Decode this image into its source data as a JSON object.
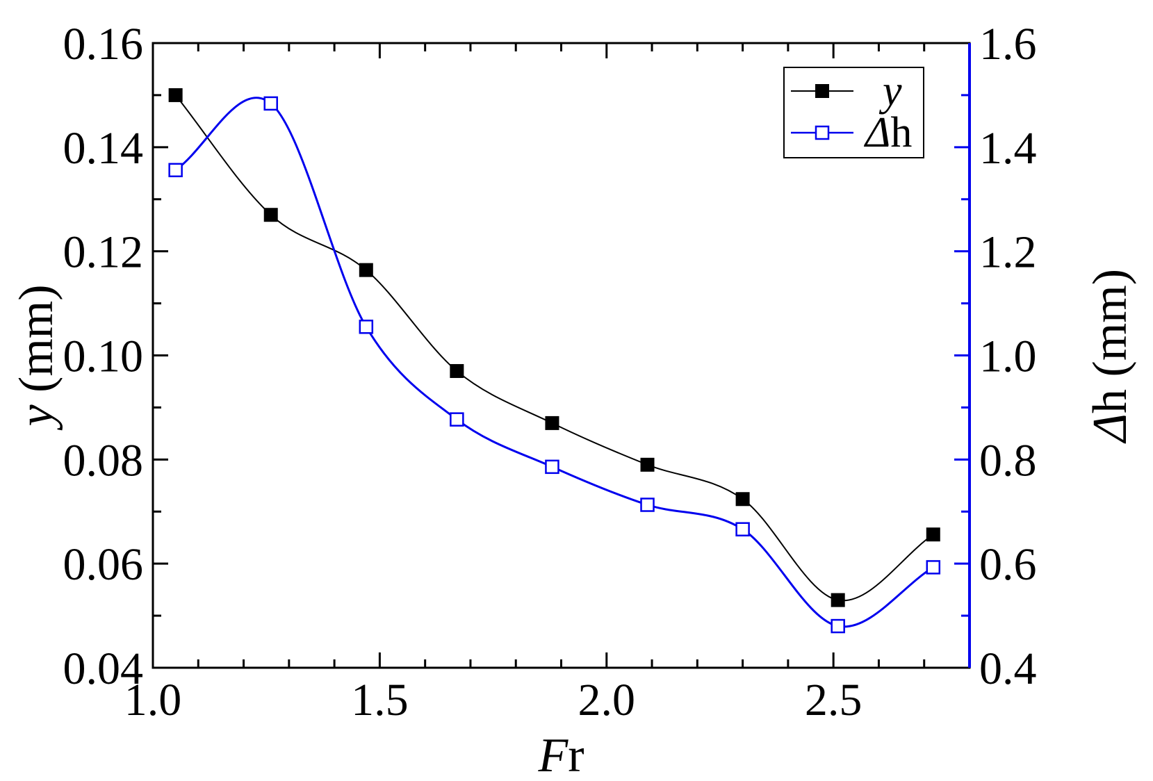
{
  "chart_data": {
    "type": "line",
    "xlabel": {
      "italic": "F",
      "normal": "r"
    },
    "ylabel": {
      "italic": "y",
      "normal": " (mm)"
    },
    "y2label": {
      "italic": "Δ",
      "normal": "h (mm)"
    },
    "xlim": [
      1.0,
      2.8
    ],
    "ylim": [
      0.04,
      0.16
    ],
    "y2lim": [
      0.4,
      1.6
    ],
    "x_ticks": [
      "1.0",
      "1.5",
      "2.0",
      "2.5"
    ],
    "x_tick_values": [
      1.0,
      1.5,
      2.0,
      2.5
    ],
    "y_ticks": [
      "0.04",
      "0.06",
      "0.08",
      "0.10",
      "0.12",
      "0.14",
      "0.16"
    ],
    "y_tick_values": [
      0.04,
      0.06,
      0.08,
      0.1,
      0.12,
      0.14,
      0.16
    ],
    "y2_ticks": [
      "0.4",
      "0.6",
      "0.8",
      "1.0",
      "1.2",
      "1.4",
      "1.6"
    ],
    "y2_tick_values": [
      0.4,
      0.6,
      0.8,
      1.0,
      1.2,
      1.4,
      1.6
    ],
    "legend_position": "top-right",
    "grid": false,
    "x": [
      1.05,
      1.26,
      1.47,
      1.67,
      1.88,
      2.09,
      2.3,
      2.51,
      2.72
    ],
    "series": [
      {
        "name": "y",
        "axis": "left",
        "color": "#000000",
        "marker": "filled-square",
        "values": [
          0.15,
          0.127,
          0.1164,
          0.097,
          0.087,
          0.079,
          0.0724,
          0.053,
          0.0656
        ]
      },
      {
        "name": "Δh",
        "name_parts": {
          "italic": "Δ",
          "normal": "h"
        },
        "axis": "right",
        "color": "#0000ee",
        "marker": "open-square",
        "values": [
          1.356,
          1.484,
          1.055,
          0.877,
          0.786,
          0.713,
          0.666,
          0.48,
          0.593
        ]
      }
    ]
  }
}
